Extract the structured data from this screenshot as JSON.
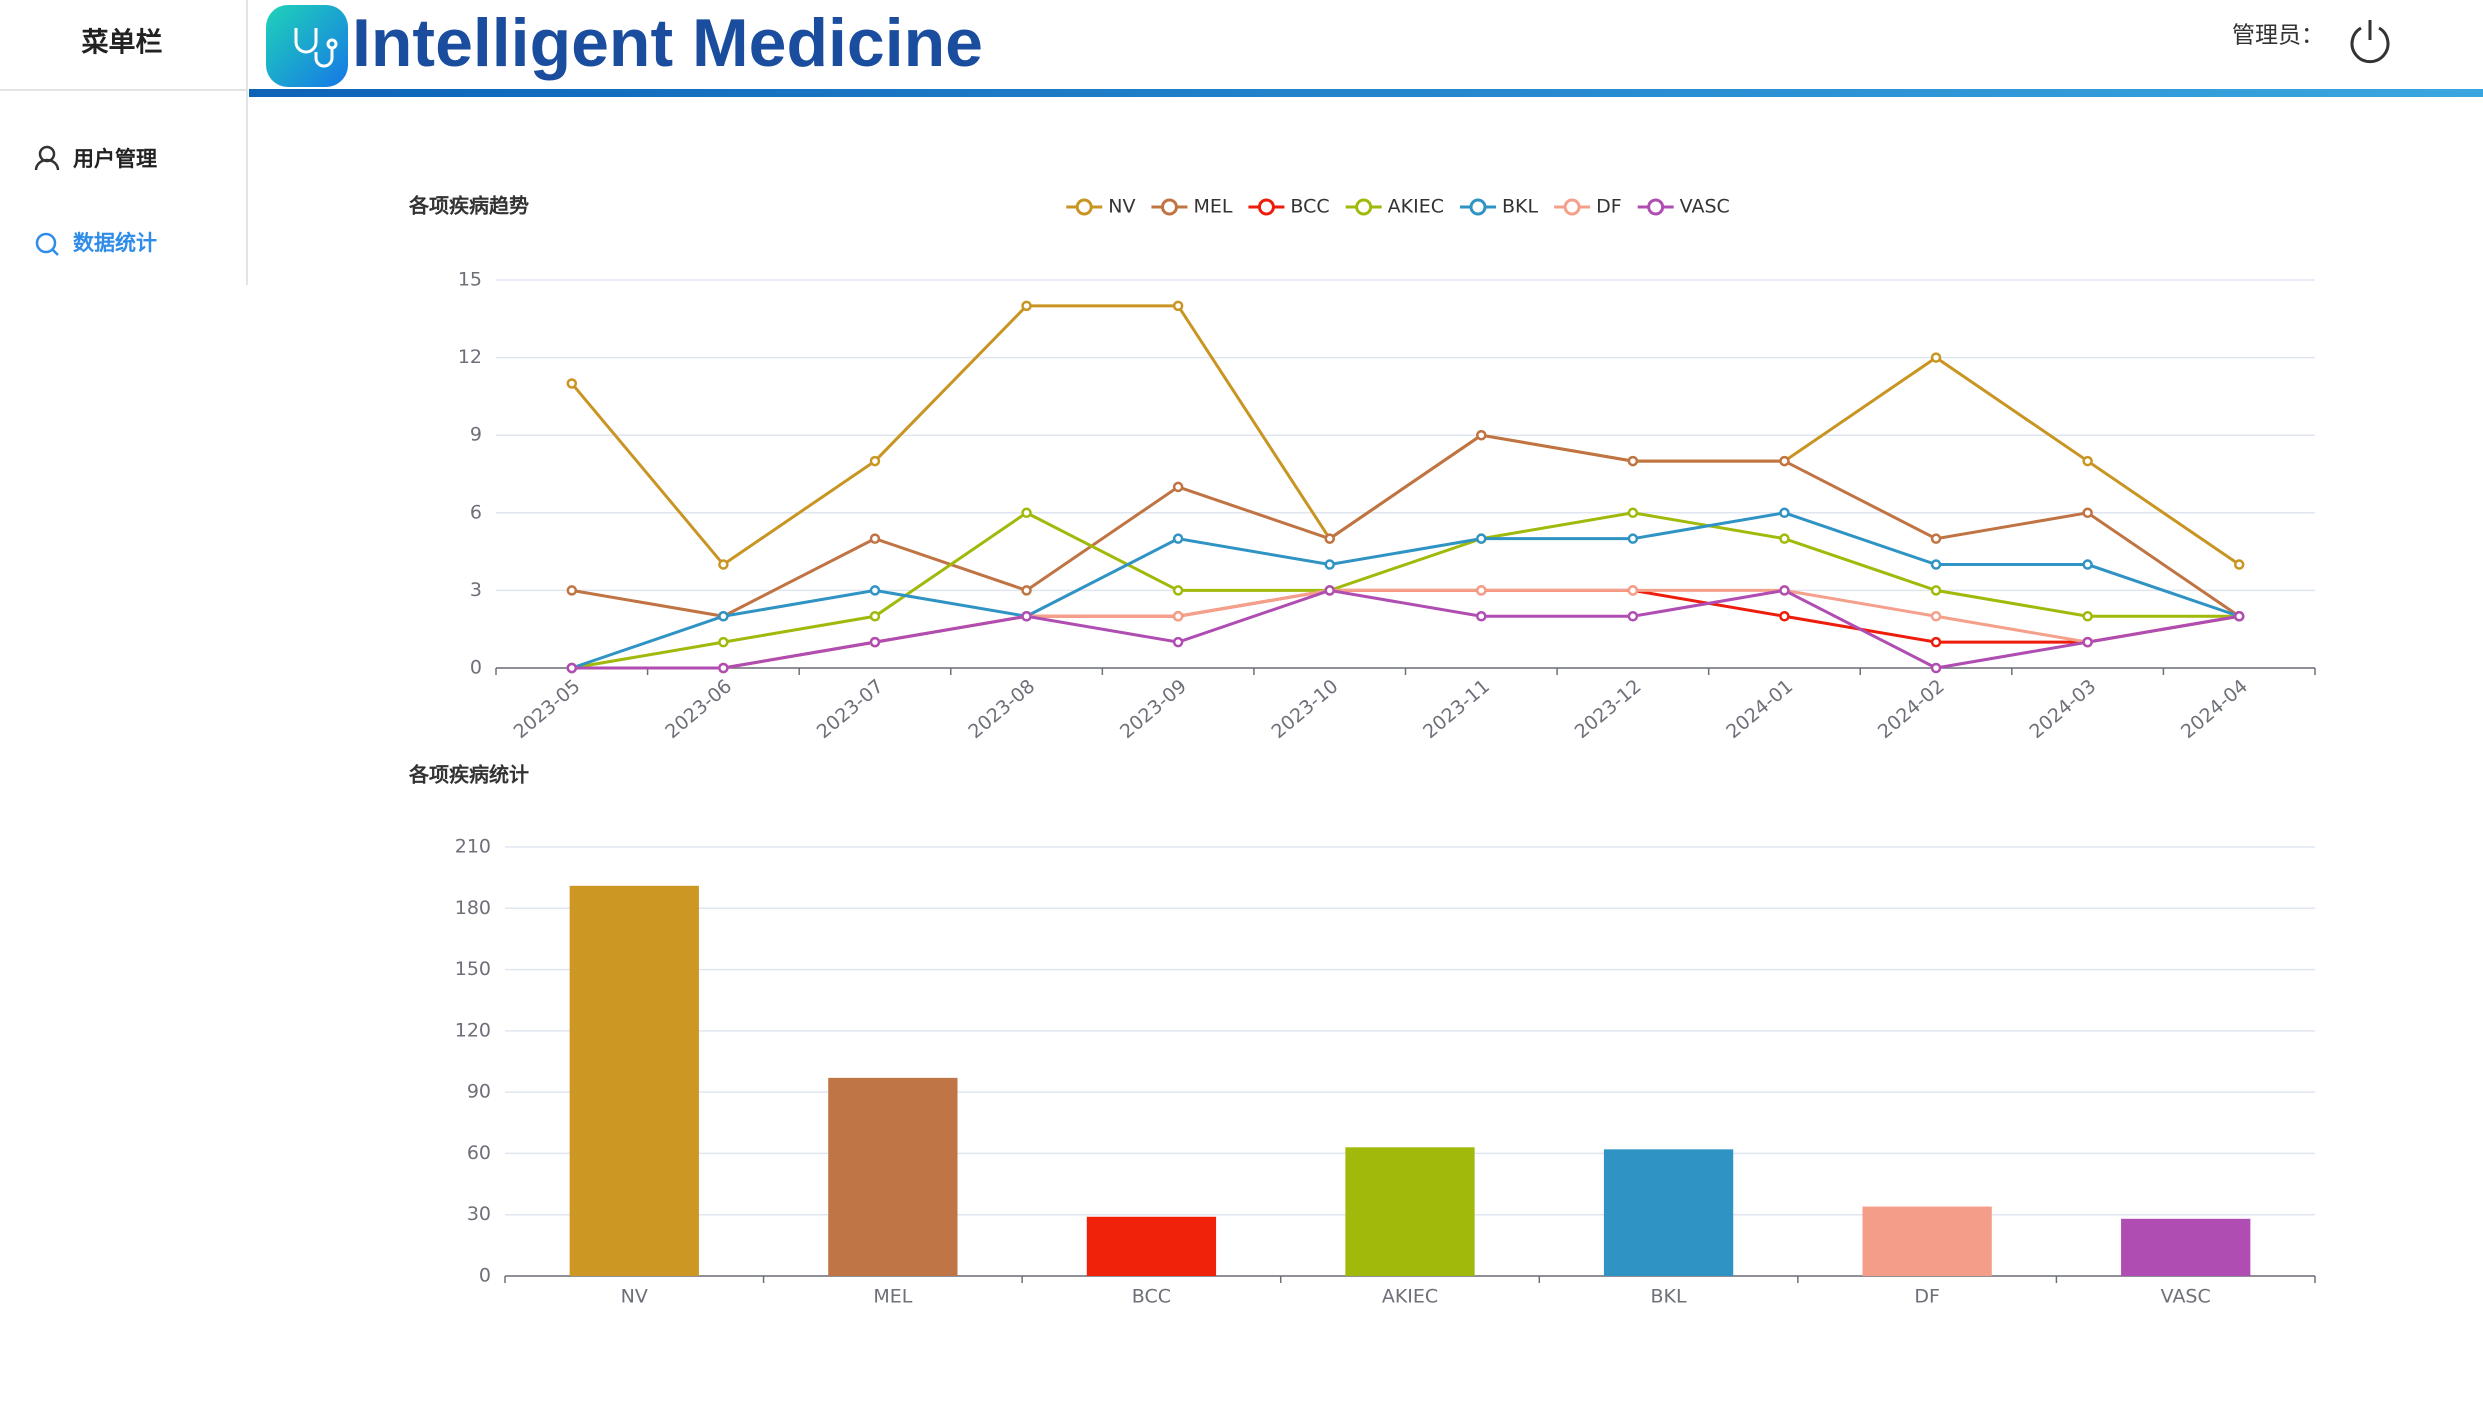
{
  "header": {
    "title": "Intelligent Medicine",
    "admin_label": "管理员："
  },
  "sidebar": {
    "title": "菜单栏",
    "items": [
      "用户管理",
      "数据统计"
    ]
  },
  "chart_data": [
    {
      "type": "line",
      "title": "各项疾病趋势",
      "categories": [
        "2023-05",
        "2023-06",
        "2023-07",
        "2023-08",
        "2023-09",
        "2023-10",
        "2023-11",
        "2023-12",
        "2024-01",
        "2024-02",
        "2024-03",
        "2024-04"
      ],
      "series": [
        {
          "name": "NV",
          "color": "#c99522",
          "values": [
            11,
            4,
            8,
            14,
            14,
            5,
            9,
            8,
            8,
            12,
            8,
            4
          ]
        },
        {
          "name": "MEL",
          "color": "#c07343",
          "values": [
            3,
            2,
            5,
            3,
            7,
            5,
            9,
            8,
            8,
            5,
            6,
            2
          ]
        },
        {
          "name": "BCC",
          "color": "#ee1c0a",
          "values": [
            0,
            0,
            1,
            2,
            2,
            3,
            3,
            3,
            2,
            1,
            1,
            2
          ]
        },
        {
          "name": "AKIEC",
          "color": "#a1b90a",
          "values": [
            0,
            1,
            2,
            6,
            3,
            3,
            5,
            6,
            5,
            3,
            2,
            2
          ]
        },
        {
          "name": "BKL",
          "color": "#2f93c4",
          "values": [
            0,
            2,
            3,
            2,
            5,
            4,
            5,
            5,
            6,
            4,
            4,
            2
          ]
        },
        {
          "name": "DF",
          "color": "#f4a08b",
          "values": [
            0,
            0,
            1,
            2,
            2,
            3,
            3,
            3,
            3,
            2,
            1,
            2
          ]
        },
        {
          "name": "VASC",
          "color": "#b04db2",
          "values": [
            0,
            0,
            1,
            2,
            1,
            3,
            2,
            2,
            3,
            0,
            1,
            2
          ]
        }
      ],
      "ylim": [
        0,
        15
      ],
      "yticks": [
        0,
        3,
        6,
        9,
        12,
        15
      ],
      "grid": true
    },
    {
      "type": "bar",
      "title": "各项疾病统计",
      "categories": [
        "NV",
        "MEL",
        "BCC",
        "AKIEC",
        "BKL",
        "DF",
        "VASC"
      ],
      "values": [
        191,
        97,
        29,
        63,
        62,
        34,
        28
      ],
      "colors": [
        "#cc9823",
        "#c07546",
        "#f0230a",
        "#a1b90a",
        "#2f93c4",
        "#f49e8a",
        "#b04db2"
      ],
      "ylim": [
        0,
        210
      ],
      "yticks": [
        0,
        30,
        60,
        90,
        120,
        150,
        180,
        210
      ],
      "grid": true
    }
  ]
}
